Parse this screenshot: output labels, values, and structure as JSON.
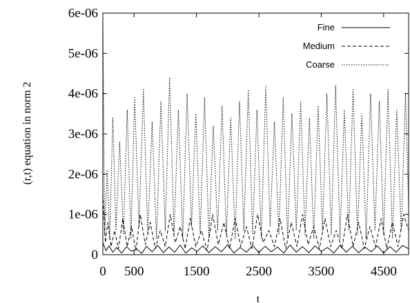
{
  "chart_data": {
    "type": "line",
    "title": "",
    "xlabel": "t",
    "ylabel": "(r,t) equation in norm 2",
    "xlim": [
      0,
      4900
    ],
    "ylim": [
      0,
      6e-06
    ],
    "x_ticks": [
      {
        "value": 0,
        "label": "0"
      },
      {
        "value": 500,
        "label": "500"
      },
      {
        "value": 1500,
        "label": "1500"
      },
      {
        "value": 2500,
        "label": "2500"
      },
      {
        "value": 3500,
        "label": "3500"
      },
      {
        "value": 4500,
        "label": "4500"
      }
    ],
    "y_ticks": [
      {
        "value": 0,
        "label": "0"
      },
      {
        "value": 1e-06,
        "label": "1e-06"
      },
      {
        "value": 2e-06,
        "label": "2e-06"
      },
      {
        "value": 3e-06,
        "label": "3e-06"
      },
      {
        "value": 4e-06,
        "label": "4e-06"
      },
      {
        "value": 5e-06,
        "label": "5e-06"
      },
      {
        "value": 6e-06,
        "label": "6e-06"
      }
    ],
    "grid": false,
    "legend": "top-right",
    "series": [
      {
        "name": "Fine",
        "style": "solid",
        "x": [
          0,
          50,
          100,
          160,
          220,
          300,
          380,
          460,
          540,
          620,
          700,
          790,
          880,
          970,
          1060,
          1150,
          1240,
          1330,
          1420,
          1510,
          1600,
          1700,
          1800,
          1900,
          2000,
          2100,
          2200,
          2300,
          2400,
          2500,
          2600,
          2700,
          2800,
          2900,
          3000,
          3100,
          3200,
          3300,
          3400,
          3500,
          3600,
          3700,
          3800,
          3900,
          4000,
          4100,
          4200,
          4300,
          4400,
          4500,
          4600,
          4700,
          4800,
          4900
        ],
        "y": [
          3e-07,
          1e-07,
          2.2e-07,
          6e-08,
          1.8e-07,
          4e-08,
          2e-07,
          8e-08,
          1.5e-07,
          3e-08,
          2.1e-07,
          7e-08,
          2.3e-07,
          5e-08,
          1.9e-07,
          6e-08,
          2.4e-07,
          4e-08,
          1.7e-07,
          8e-08,
          2.2e-07,
          5e-08,
          2e-07,
          7e-08,
          2.5e-07,
          4e-08,
          1.8e-07,
          6e-08,
          2.3e-07,
          5e-08,
          2.1e-07,
          7e-08,
          1.9e-07,
          4e-08,
          2.4e-07,
          6e-08,
          2e-07,
          5e-08,
          2.2e-07,
          8e-08,
          1.8e-07,
          4e-08,
          2.3e-07,
          6e-08,
          2.1e-07,
          5e-08,
          1.9e-07,
          7e-08,
          2.2e-07,
          4e-08,
          2e-07,
          6e-08,
          2.3e-07,
          1.5e-07
        ]
      },
      {
        "name": "Medium",
        "style": "dashed",
        "x": [
          0,
          40,
          80,
          130,
          190,
          250,
          320,
          390,
          460,
          530,
          600,
          680,
          760,
          840,
          920,
          1000,
          1080,
          1160,
          1240,
          1320,
          1400,
          1490,
          1580,
          1670,
          1760,
          1850,
          1940,
          2030,
          2120,
          2210,
          2300,
          2390,
          2480,
          2570,
          2660,
          2750,
          2840,
          2930,
          3020,
          3110,
          3200,
          3290,
          3380,
          3470,
          3560,
          3650,
          3740,
          3830,
          3920,
          4010,
          4100,
          4190,
          4280,
          4370,
          4460,
          4550,
          4640,
          4730,
          4820,
          4900
        ],
        "y": [
          1.5e-06,
          3e-07,
          8e-07,
          2e-07,
          6e-07,
          1.5e-07,
          9e-07,
          2e-07,
          7e-07,
          1e-07,
          1e-06,
          2.5e-07,
          8e-07,
          1.5e-07,
          6e-07,
          2e-07,
          1e-06,
          3e-07,
          7e-07,
          1.5e-07,
          9e-07,
          2e-07,
          6e-07,
          1e-07,
          1e-06,
          2.5e-07,
          8e-07,
          1.5e-07,
          9e-07,
          2e-07,
          7e-07,
          1.5e-07,
          1e-06,
          3e-07,
          6e-07,
          2e-07,
          9e-07,
          1.5e-07,
          8e-07,
          2e-07,
          1e-06,
          2.5e-07,
          7e-07,
          1.5e-07,
          9e-07,
          2e-07,
          6e-07,
          1.5e-07,
          1e-06,
          2e-07,
          8e-07,
          1.5e-07,
          7e-07,
          2e-07,
          9e-07,
          1.5e-07,
          8e-07,
          2e-07,
          1e-06,
          6e-07
        ]
      },
      {
        "name": "Coarse",
        "style": "dotted",
        "x": [
          0,
          30,
          70,
          110,
          160,
          210,
          270,
          330,
          390,
          450,
          510,
          580,
          650,
          720,
          790,
          860,
          930,
          1000,
          1070,
          1140,
          1210,
          1280,
          1350,
          1420,
          1490,
          1560,
          1630,
          1700,
          1770,
          1840,
          1910,
          1980,
          2050,
          2120,
          2190,
          2260,
          2330,
          2400,
          2470,
          2540,
          2610,
          2680,
          2750,
          2820,
          2890,
          2960,
          3030,
          3100,
          3170,
          3240,
          3310,
          3380,
          3450,
          3520,
          3590,
          3660,
          3730,
          3800,
          3870,
          3940,
          4010,
          4080,
          4150,
          4220,
          4290,
          4360,
          4430,
          4500,
          4570,
          4640,
          4710,
          4780,
          4850,
          4900
        ],
        "y": [
          5.9e-06,
          5e-07,
          2.1e-06,
          4e-07,
          3.4e-06,
          6e-07,
          2.8e-06,
          5e-07,
          3.6e-06,
          4e-07,
          3.9e-06,
          7e-07,
          4.1e-06,
          5e-07,
          3.3e-06,
          4e-07,
          3.8e-06,
          6e-07,
          4.4e-06,
          5e-07,
          3.6e-06,
          4e-07,
          4e-06,
          7e-07,
          3.5e-06,
          5e-07,
          3.9e-06,
          4e-07,
          3.2e-06,
          6e-07,
          3.7e-06,
          5e-07,
          3.4e-06,
          4e-07,
          3.8e-06,
          6e-07,
          4.1e-06,
          5e-07,
          3.6e-06,
          4e-07,
          4.2e-06,
          7e-07,
          3.3e-06,
          5e-07,
          3.9e-06,
          4e-07,
          3.5e-06,
          6e-07,
          3.8e-06,
          5e-07,
          3.4e-06,
          4e-07,
          3.7e-06,
          6e-07,
          4e-06,
          5e-07,
          4.2e-06,
          4e-07,
          3.6e-06,
          6e-07,
          4.1e-06,
          5e-07,
          3.5e-06,
          4e-07,
          4e-06,
          6e-07,
          3.8e-06,
          5e-07,
          4.1e-06,
          4e-07,
          3.6e-06,
          6e-07,
          4e-06,
          1.2e-06
        ]
      }
    ]
  }
}
